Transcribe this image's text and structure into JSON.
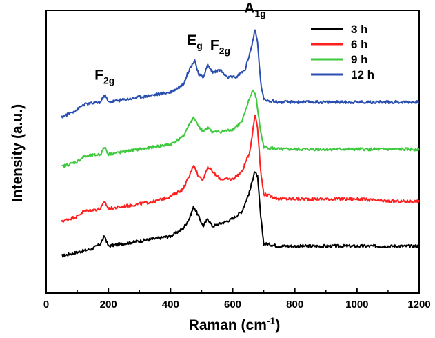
{
  "chart_data": {
    "type": "line",
    "xlabel": "Raman (cm",
    "xlabel_sup": "-1",
    "xlabel_close": ")",
    "ylabel": "Intensity (a.u.)",
    "xlim": [
      0,
      1200
    ],
    "ylim": [
      0,
      1
    ],
    "x_ticks": [
      "0",
      "200",
      "400",
      "600",
      "800",
      "1000",
      "1200"
    ],
    "y_ticks_shown": false,
    "grid": false,
    "legend_position": "top-right",
    "series": [
      {
        "name": "3 h",
        "color": "#000000",
        "points": [
          [
            50,
            0.08
          ],
          [
            100,
            0.095
          ],
          [
            150,
            0.11
          ],
          [
            175,
            0.13
          ],
          [
            188,
            0.16
          ],
          [
            200,
            0.12
          ],
          [
            250,
            0.13
          ],
          [
            300,
            0.14
          ],
          [
            350,
            0.15
          ],
          [
            400,
            0.16
          ],
          [
            440,
            0.19
          ],
          [
            460,
            0.23
          ],
          [
            475,
            0.28
          ],
          [
            490,
            0.24
          ],
          [
            505,
            0.2
          ],
          [
            520,
            0.23
          ],
          [
            535,
            0.2
          ],
          [
            560,
            0.21
          ],
          [
            600,
            0.23
          ],
          [
            630,
            0.26
          ],
          [
            655,
            0.34
          ],
          [
            670,
            0.42
          ],
          [
            680,
            0.4
          ],
          [
            690,
            0.24
          ],
          [
            700,
            0.13
          ],
          [
            750,
            0.12
          ],
          [
            800,
            0.12
          ],
          [
            900,
            0.12
          ],
          [
            1000,
            0.12
          ],
          [
            1100,
            0.12
          ],
          [
            1200,
            0.12
          ]
        ]
      },
      {
        "name": "6 h",
        "color": "#ff2020",
        "points": [
          [
            50,
            0.22
          ],
          [
            100,
            0.24
          ],
          [
            120,
            0.26
          ],
          [
            175,
            0.27
          ],
          [
            188,
            0.3
          ],
          [
            200,
            0.27
          ],
          [
            250,
            0.28
          ],
          [
            300,
            0.29
          ],
          [
            350,
            0.3
          ],
          [
            400,
            0.32
          ],
          [
            440,
            0.35
          ],
          [
            460,
            0.4
          ],
          [
            475,
            0.45
          ],
          [
            490,
            0.4
          ],
          [
            505,
            0.39
          ],
          [
            520,
            0.44
          ],
          [
            535,
            0.42
          ],
          [
            560,
            0.39
          ],
          [
            600,
            0.39
          ],
          [
            630,
            0.42
          ],
          [
            655,
            0.5
          ],
          [
            672,
            0.65
          ],
          [
            680,
            0.6
          ],
          [
            690,
            0.42
          ],
          [
            700,
            0.33
          ],
          [
            750,
            0.31
          ],
          [
            800,
            0.31
          ],
          [
            900,
            0.31
          ],
          [
            1000,
            0.31
          ],
          [
            1100,
            0.3
          ],
          [
            1200,
            0.3
          ]
        ]
      },
      {
        "name": "9 h",
        "color": "#3ec93e",
        "points": [
          [
            50,
            0.44
          ],
          [
            100,
            0.46
          ],
          [
            120,
            0.48
          ],
          [
            175,
            0.49
          ],
          [
            188,
            0.52
          ],
          [
            200,
            0.49
          ],
          [
            250,
            0.5
          ],
          [
            300,
            0.51
          ],
          [
            350,
            0.52
          ],
          [
            400,
            0.53
          ],
          [
            440,
            0.56
          ],
          [
            460,
            0.61
          ],
          [
            475,
            0.64
          ],
          [
            490,
            0.6
          ],
          [
            505,
            0.58
          ],
          [
            520,
            0.6
          ],
          [
            535,
            0.58
          ],
          [
            560,
            0.58
          ],
          [
            600,
            0.59
          ],
          [
            630,
            0.62
          ],
          [
            650,
            0.7
          ],
          [
            665,
            0.75
          ],
          [
            675,
            0.72
          ],
          [
            690,
            0.58
          ],
          [
            700,
            0.52
          ],
          [
            750,
            0.51
          ],
          [
            800,
            0.51
          ],
          [
            900,
            0.51
          ],
          [
            1000,
            0.51
          ],
          [
            1100,
            0.51
          ],
          [
            1200,
            0.51
          ]
        ]
      },
      {
        "name": "12 h",
        "color": "#2b4fb0",
        "points": [
          [
            50,
            0.64
          ],
          [
            100,
            0.67
          ],
          [
            120,
            0.69
          ],
          [
            175,
            0.7
          ],
          [
            188,
            0.73
          ],
          [
            200,
            0.7
          ],
          [
            250,
            0.71
          ],
          [
            300,
            0.72
          ],
          [
            350,
            0.73
          ],
          [
            400,
            0.74
          ],
          [
            440,
            0.77
          ],
          [
            460,
            0.83
          ],
          [
            478,
            0.87
          ],
          [
            490,
            0.81
          ],
          [
            505,
            0.8
          ],
          [
            520,
            0.85
          ],
          [
            535,
            0.82
          ],
          [
            560,
            0.83
          ],
          [
            580,
            0.8
          ],
          [
            610,
            0.8
          ],
          [
            640,
            0.83
          ],
          [
            660,
            0.92
          ],
          [
            672,
            0.99
          ],
          [
            680,
            0.94
          ],
          [
            690,
            0.78
          ],
          [
            700,
            0.71
          ],
          [
            750,
            0.7
          ],
          [
            800,
            0.7
          ],
          [
            900,
            0.7
          ],
          [
            1000,
            0.7
          ],
          [
            1100,
            0.7
          ],
          [
            1200,
            0.7
          ]
        ]
      }
    ],
    "annotations": [
      {
        "main": "F",
        "sub": "2g",
        "x": 188,
        "y": 0.79
      },
      {
        "main": "E",
        "sub": "g",
        "x": 478,
        "y": 0.93
      },
      {
        "main": "F",
        "sub": "2g",
        "x": 560,
        "y": 0.91
      },
      {
        "main": "A",
        "sub": "1g",
        "x": 672,
        "y": 1.06
      }
    ]
  }
}
